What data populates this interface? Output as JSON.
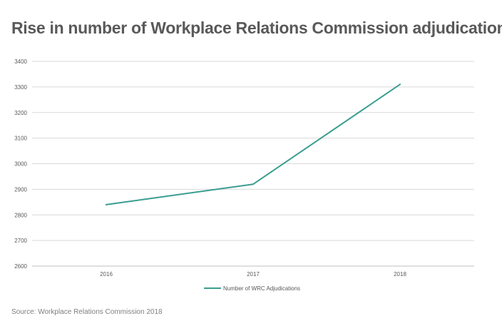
{
  "chart_data": {
    "type": "line",
    "title": "Rise in number of Workplace Relations Commission adjudications",
    "categories": [
      "2016",
      "2017",
      "2018"
    ],
    "series": [
      {
        "name": "Number of WRC Adjudications",
        "values": [
          2840,
          2920,
          3310
        ],
        "color": "#3a9e91"
      }
    ],
    "ylim": [
      2600,
      3400
    ],
    "yticks": [
      "2600",
      "2700",
      "2800",
      "2900",
      "3000",
      "3100",
      "3200",
      "3300",
      "3400"
    ],
    "grid": "horizontal",
    "legend": "bottom-center",
    "xlabel": "",
    "ylabel": ""
  },
  "source": "Source: Workplace Relations Commission 2018",
  "colors": {
    "grid": "#d9d9d9",
    "axis": "#bfbfbf",
    "title": "#595959",
    "text": "#595959"
  }
}
